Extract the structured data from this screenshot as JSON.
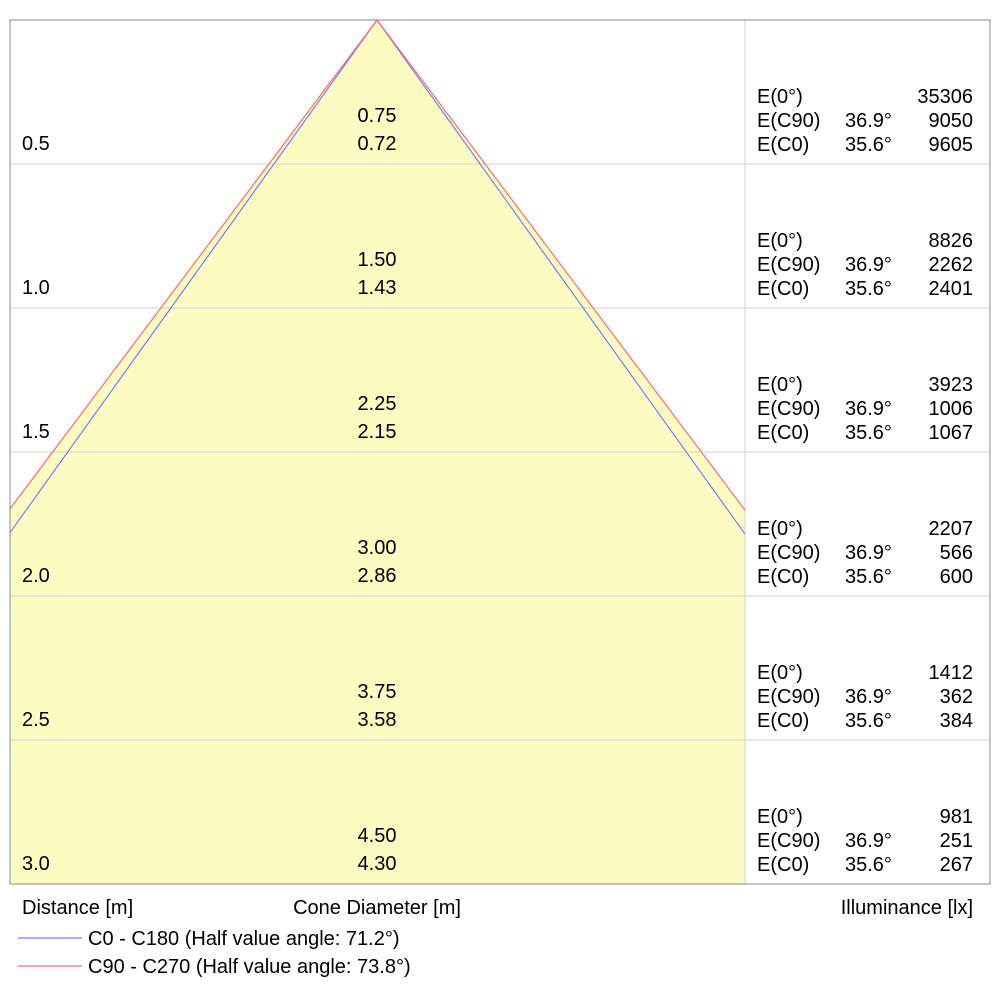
{
  "chart_data": {
    "type": "cone-diagram",
    "xlabel": "Distance [m]",
    "cone_label": "Cone Diameter [m]",
    "ylabel": "Illuminance [lx]",
    "colors": {
      "fill": "#fbfbc2",
      "grid": "#d0d0d0",
      "border": "#888888"
    },
    "series": [
      {
        "name": "C0 - C180 (Half value angle: 71.2°)",
        "color": "#7b7bff",
        "half_angle": 35.6
      },
      {
        "name": "C90 - C270 (Half value angle: 73.8°)",
        "color": "#ff6a6a",
        "half_angle": 36.9
      }
    ],
    "rows": [
      {
        "distance": "0.5",
        "d_c90": "0.75",
        "d_c0": "0.72",
        "e0_label": "E(0°)",
        "e0": "35306",
        "c90_label": "E(C90)",
        "c90_angle": "36.9°",
        "c90": "9050",
        "c0_label": "E(C0)",
        "c0_angle": "35.6°",
        "c0": "9605"
      },
      {
        "distance": "1.0",
        "d_c90": "1.50",
        "d_c0": "1.43",
        "e0_label": "E(0°)",
        "e0": "8826",
        "c90_label": "E(C90)",
        "c90_angle": "36.9°",
        "c90": "2262",
        "c0_label": "E(C0)",
        "c0_angle": "35.6°",
        "c0": "2401"
      },
      {
        "distance": "1.5",
        "d_c90": "2.25",
        "d_c0": "2.15",
        "e0_label": "E(0°)",
        "e0": "3923",
        "c90_label": "E(C90)",
        "c90_angle": "36.9°",
        "c90": "1006",
        "c0_label": "E(C0)",
        "c0_angle": "35.6°",
        "c0": "1067"
      },
      {
        "distance": "2.0",
        "d_c90": "3.00",
        "d_c0": "2.86",
        "e0_label": "E(0°)",
        "e0": "2207",
        "c90_label": "E(C90)",
        "c90_angle": "36.9°",
        "c90": "566",
        "c0_label": "E(C0)",
        "c0_angle": "35.6°",
        "c0": "600"
      },
      {
        "distance": "2.5",
        "d_c90": "3.75",
        "d_c0": "3.58",
        "e0_label": "E(0°)",
        "e0": "1412",
        "c90_label": "E(C90)",
        "c90_angle": "36.9°",
        "c90": "362",
        "c0_label": "E(C0)",
        "c0_angle": "35.6°",
        "c0": "384"
      },
      {
        "distance": "3.0",
        "d_c90": "4.50",
        "d_c0": "4.30",
        "e0_label": "E(0°)",
        "e0": "981",
        "c90_label": "E(C90)",
        "c90_angle": "36.9°",
        "c90": "251",
        "c0_label": "E(C0)",
        "c0_angle": "35.6°",
        "c0": "267"
      }
    ]
  }
}
